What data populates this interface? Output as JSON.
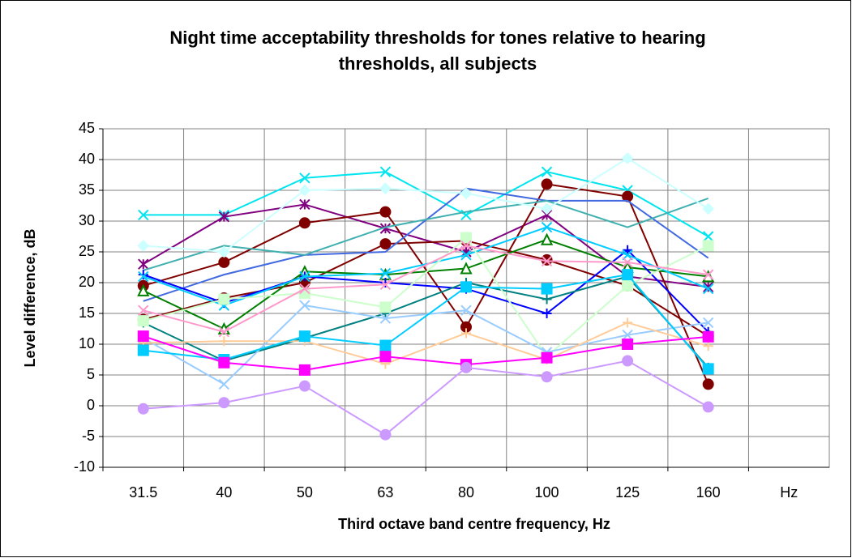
{
  "chart_data": {
    "type": "line",
    "title": [
      "Night time acceptability thresholds for tones relative to hearing",
      "thresholds, all subjects"
    ],
    "xlabel": "Third octave band centre frequency, Hz",
    "ylabel": "Level difference, dB",
    "categories": [
      "31.5",
      "40",
      "50",
      "63",
      "80",
      "100",
      "125",
      "160",
      "Hz"
    ],
    "ylim": [
      -10,
      45
    ],
    "yticks": [
      -10,
      -5,
      0,
      5,
      10,
      15,
      20,
      25,
      30,
      35,
      40,
      45
    ],
    "grid": true,
    "series": [
      {
        "color": "#00e5ee",
        "marker": "x",
        "values": [
          31,
          31,
          37,
          38,
          31,
          38,
          35,
          27.5,
          null
        ]
      },
      {
        "color": "#800080",
        "marker": "asterisk",
        "values": [
          23,
          30.7,
          32.7,
          28.8,
          25,
          31,
          21,
          19.3,
          null
        ]
      },
      {
        "color": "#800000",
        "marker": "circle",
        "values": [
          19.5,
          23.3,
          29.7,
          31.5,
          12.8,
          36,
          34,
          3.5,
          null
        ]
      },
      {
        "color": "#800000",
        "marker": "circle",
        "values": [
          14,
          17.5,
          20,
          26.3,
          26.8,
          23.7,
          19.5,
          11.3,
          null
        ]
      },
      {
        "color": "#4169e1",
        "marker": "none",
        "values": [
          17,
          21.3,
          24.5,
          25,
          35.3,
          33.3,
          33.3,
          24,
          null
        ]
      },
      {
        "color": "#40b0b0",
        "marker": "none",
        "values": [
          22,
          26,
          24.5,
          29,
          31.5,
          33.3,
          29,
          33.7,
          null
        ]
      },
      {
        "color": "#ccffff",
        "marker": "diamond",
        "values": [
          26,
          25,
          35,
          35.3,
          34.5,
          32,
          40.2,
          32,
          null
        ]
      },
      {
        "color": "#008000",
        "marker": "triangle",
        "values": [
          18.7,
          12.5,
          21.8,
          21.3,
          22.3,
          27,
          22.5,
          21,
          null
        ]
      },
      {
        "color": "#0000ff",
        "marker": "plus",
        "values": [
          21.3,
          16.7,
          21,
          20,
          19,
          15,
          25.3,
          12,
          null
        ]
      },
      {
        "color": "#008080",
        "marker": "plus",
        "values": [
          13.5,
          7.3,
          11,
          15,
          20,
          17.3,
          21,
          6.2,
          null
        ]
      },
      {
        "color": "#00ccff",
        "marker": "x",
        "values": [
          21,
          16.3,
          21,
          21.5,
          24.5,
          29,
          24.5,
          19,
          null
        ]
      },
      {
        "color": "#ccffcc",
        "marker": "square",
        "values": [
          13.8,
          17.3,
          18.3,
          16,
          27.3,
          8,
          19.5,
          26,
          null
        ]
      },
      {
        "color": "#ff99cc",
        "marker": "x",
        "values": [
          15.5,
          12,
          19,
          19.7,
          26,
          23.5,
          23.3,
          21.3,
          null
        ]
      },
      {
        "color": "#99ccff",
        "marker": "x",
        "values": [
          11,
          3.5,
          16.3,
          14.2,
          15.5,
          8.7,
          11.5,
          13.5,
          null
        ]
      },
      {
        "color": "#ffcc99",
        "marker": "plus",
        "values": [
          10.2,
          10.5,
          10.5,
          6.8,
          11.8,
          7.5,
          13.5,
          9.7,
          null
        ]
      },
      {
        "color": "#00ccff",
        "marker": "square",
        "values": [
          9,
          7.5,
          11.3,
          9.8,
          19.3,
          19,
          21.3,
          6,
          null
        ]
      },
      {
        "color": "#ff00ff",
        "marker": "square",
        "values": [
          11.3,
          7,
          5.8,
          8,
          6.7,
          7.8,
          10,
          11.2,
          null
        ]
      },
      {
        "color": "#cc99ff",
        "marker": "circle",
        "values": [
          -0.5,
          0.5,
          3.2,
          -4.7,
          6.2,
          4.7,
          7.3,
          -0.2,
          null
        ]
      }
    ]
  }
}
